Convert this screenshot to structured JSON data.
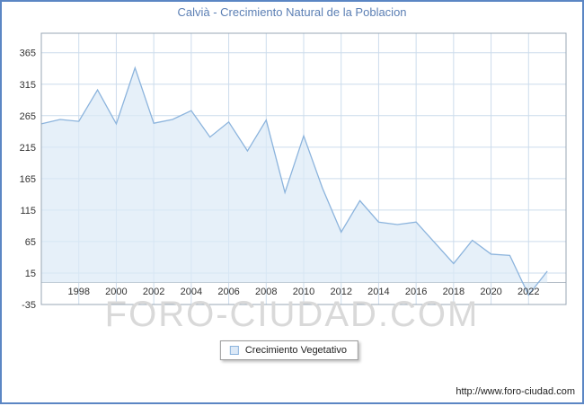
{
  "title": "Calvià - Crecimiento Natural de la Poblacion",
  "legend": {
    "label": "Crecimiento Vegetativo"
  },
  "watermark": "FORO-CIUDAD.COM",
  "footer": {
    "url": "http://www.foro-ciudad.com"
  },
  "colors": {
    "frame": "#5b86c4",
    "title": "#5b7fb4",
    "line": "#8cb4dd",
    "fill": "#dce9f7",
    "grid": "#ccdcec",
    "plot_border": "#9aa7b4",
    "zero_axis": "#b4bec8",
    "axis_text": "#333333",
    "watermark": "#d9d9d9"
  },
  "chart_data": {
    "type": "area",
    "title": "Calvià - Crecimiento Natural de la Poblacion",
    "xlabel": "",
    "ylabel": "",
    "xlim": [
      1996,
      2024
    ],
    "ylim": [
      -35,
      396
    ],
    "baseline": 0,
    "grid": true,
    "legend_position": "bottom-center",
    "x_tick_labels": [
      1998,
      2000,
      2002,
      2004,
      2006,
      2008,
      2010,
      2012,
      2014,
      2016,
      2018,
      2020,
      2022
    ],
    "y_ticks": [
      365,
      315,
      265,
      215,
      165,
      115,
      65,
      15,
      -35
    ],
    "series": [
      {
        "name": "Crecimiento Vegetativo",
        "x": [
          1996,
          1997,
          1998,
          1999,
          2000,
          2001,
          2002,
          2003,
          2004,
          2005,
          2006,
          2007,
          2008,
          2009,
          2010,
          2011,
          2012,
          2013,
          2014,
          2015,
          2016,
          2017,
          2018,
          2019,
          2020,
          2021,
          2022,
          2023
        ],
        "y": [
          252,
          259,
          256,
          306,
          252,
          341,
          253,
          259,
          273,
          231,
          255,
          209,
          258,
          143,
          233,
          150,
          80,
          130,
          96,
          92,
          96,
          63,
          30,
          67,
          45,
          43,
          -20,
          18
        ]
      }
    ]
  }
}
